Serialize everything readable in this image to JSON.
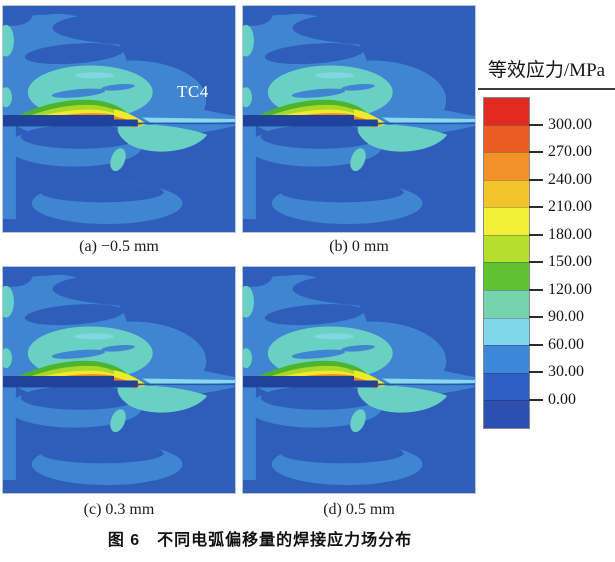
{
  "figure": {
    "caption": "图 6　不同电弧偏移量的焊接应力场分布",
    "material_label": "TC4"
  },
  "panels": [
    {
      "id": "a",
      "label": "(a) −0.5 mm"
    },
    {
      "id": "b",
      "label": "(b) 0 mm"
    },
    {
      "id": "c",
      "label": "(c) 0.3 mm"
    },
    {
      "id": "d",
      "label": "(d) 0.5 mm"
    }
  ],
  "legend": {
    "title": "等效应力/MPa",
    "tick_labels": [
      "300.00",
      "270.00",
      "240.00",
      "210.00",
      "180.00",
      "150.00",
      "120.00",
      "90.00",
      "60.00",
      "30.00",
      "0.00"
    ],
    "colors": [
      "#e12a20",
      "#ea5c24",
      "#f19127",
      "#f3c32b",
      "#f2ef36",
      "#b6de2e",
      "#5fc231",
      "#75d3ae",
      "#80d6eb",
      "#3c87d7",
      "#2f5fc4",
      "#2c4fb3"
    ]
  },
  "field_colors": {
    "base_blue": "#2f5dba",
    "patch_blue": "#3f85d1",
    "teal": "#69d1c4",
    "cyan": "#8ad8ec",
    "green": "#4db42e",
    "yellow_green": "#abd826",
    "yellow": "#f0e92c",
    "orange": "#ef8b1e",
    "plate_navy": "#20429c"
  },
  "chart_data": {
    "type": "heatmap",
    "title": "图 6 不同电弧偏移量的焊接应力场分布",
    "description": "Equivalent (von Mises) welding residual stress contour fields for four arc offset values on a TC4 joint cross-section",
    "subplots": [
      {
        "label": "(a) −0.5 mm",
        "arc_offset_mm": -0.5
      },
      {
        "label": "(b) 0 mm",
        "arc_offset_mm": 0
      },
      {
        "label": "(c) 0.3 mm",
        "arc_offset_mm": 0.3
      },
      {
        "label": "(d) 0.5 mm",
        "arc_offset_mm": 0.5
      }
    ],
    "colorbar": {
      "label": "等效应力/MPa",
      "ticks": [
        300,
        270,
        240,
        210,
        180,
        150,
        120,
        90,
        60,
        30,
        0
      ],
      "tick_step": 30,
      "range": [
        0,
        300
      ],
      "n_segments": 12,
      "orientation": "vertical",
      "position": "right"
    },
    "annotations": [
      "TC4"
    ],
    "legend_position": "right",
    "grid": false
  }
}
